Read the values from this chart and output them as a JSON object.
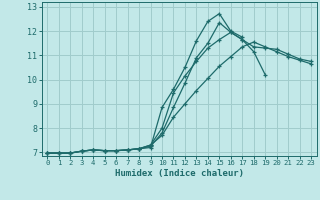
{
  "xlabel": "Humidex (Indice chaleur)",
  "xlim": [
    -0.5,
    23.5
  ],
  "ylim": [
    6.85,
    13.2
  ],
  "xticks": [
    0,
    1,
    2,
    3,
    4,
    5,
    6,
    7,
    8,
    9,
    10,
    11,
    12,
    13,
    14,
    15,
    16,
    17,
    18,
    19,
    20,
    21,
    22,
    23
  ],
  "yticks": [
    7,
    8,
    9,
    10,
    11,
    12,
    13
  ],
  "background_color": "#c2e8e8",
  "grid_color": "#a0cccc",
  "line_color": "#1e6b6b",
  "curves": [
    {
      "x": [
        0,
        1,
        2,
        3,
        4,
        5,
        6,
        7,
        8,
        9,
        10,
        11,
        12,
        13,
        14,
        15,
        16,
        17,
        18,
        19,
        20,
        21,
        22,
        23
      ],
      "y": [
        6.97,
        6.97,
        6.97,
        7.05,
        7.1,
        7.07,
        7.07,
        7.1,
        7.15,
        7.2,
        8.85,
        9.6,
        10.5,
        11.6,
        12.4,
        12.72,
        12.0,
        11.75,
        null,
        null,
        null,
        null,
        null,
        null
      ]
    },
    {
      "x": [
        0,
        1,
        2,
        3,
        4,
        5,
        6,
        7,
        8,
        9,
        10,
        11,
        12,
        13,
        14,
        15,
        16,
        17,
        18,
        19,
        20,
        21,
        22,
        23
      ],
      "y": [
        6.97,
        6.97,
        6.97,
        7.05,
        7.1,
        7.07,
        7.07,
        7.1,
        7.15,
        7.25,
        7.8,
        8.85,
        9.85,
        10.9,
        11.5,
        12.35,
        11.95,
        11.65,
        11.15,
        10.2,
        null,
        null,
        null,
        null
      ]
    },
    {
      "x": [
        0,
        1,
        2,
        3,
        4,
        5,
        6,
        7,
        8,
        9,
        10,
        11,
        12,
        13,
        14,
        15,
        16,
        17,
        18,
        19,
        20,
        21,
        22,
        23
      ],
      "y": [
        6.97,
        6.97,
        6.97,
        7.05,
        7.1,
        7.07,
        7.07,
        7.1,
        7.15,
        7.3,
        8.0,
        9.45,
        10.15,
        10.75,
        11.3,
        11.65,
        11.95,
        11.65,
        11.35,
        11.3,
        11.25,
        11.05,
        10.85,
        10.75
      ]
    },
    {
      "x": [
        0,
        1,
        2,
        3,
        4,
        5,
        6,
        7,
        8,
        9,
        10,
        11,
        12,
        13,
        14,
        15,
        16,
        17,
        18,
        19,
        20,
        21,
        22,
        23
      ],
      "y": [
        6.97,
        6.97,
        6.97,
        7.05,
        7.1,
        7.07,
        7.07,
        7.1,
        7.15,
        7.3,
        7.7,
        8.45,
        9.0,
        9.55,
        10.05,
        10.55,
        10.95,
        11.35,
        11.55,
        11.35,
        11.15,
        10.95,
        10.8,
        10.65
      ]
    }
  ]
}
